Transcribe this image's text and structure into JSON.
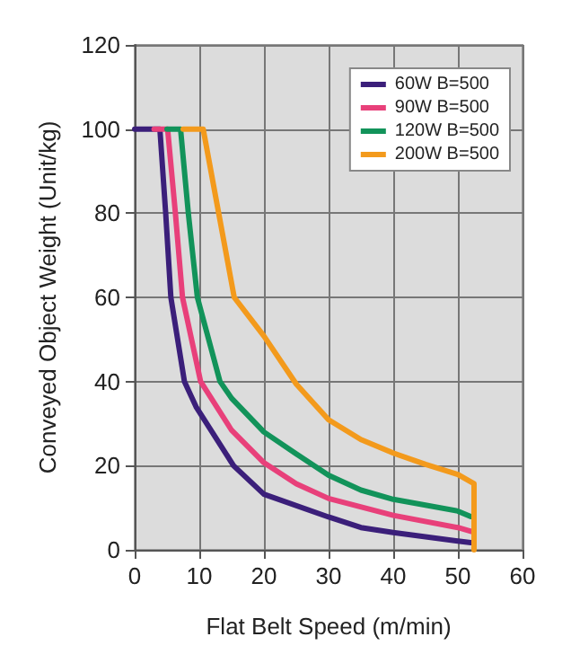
{
  "chart_data": {
    "type": "line",
    "xlabel": "Flat Belt Speed (m/min)",
    "ylabel": "Conveyed Object Weight (Unit/kg)",
    "xlim": [
      0,
      60
    ],
    "xticks": [
      0,
      10,
      20,
      30,
      40,
      50,
      60
    ],
    "ylim": [
      0,
      120
    ],
    "yticks": [
      0,
      20,
      40,
      60,
      80,
      100,
      120
    ],
    "grid": true,
    "legend": "top right",
    "marker": "none",
    "line_style": "solid",
    "series": [
      {
        "name": "60W B=500",
        "color": "#3b1f7a",
        "x": [
          0,
          3.9,
          4.8,
          5.6,
          7.7,
          9.5,
          15.3,
          20,
          30,
          35,
          40,
          50,
          52
        ],
        "values": [
          100,
          100,
          80,
          60,
          40,
          34,
          20,
          13.2,
          7.8,
          5.3,
          4.1,
          2.1,
          1.7
        ]
      },
      {
        "name": "90W B=500",
        "color": "#e8407a",
        "x": [
          3,
          5.1,
          6.3,
          7.4,
          10.2,
          15,
          20,
          25,
          30,
          40,
          50,
          52
        ],
        "values": [
          100,
          100,
          80,
          60,
          40,
          28.4,
          20.7,
          15.7,
          12.2,
          8.2,
          5.3,
          4.4
        ]
      },
      {
        "name": "120W B=500",
        "color": "#12935a",
        "x": [
          5,
          7.1,
          8.3,
          9.7,
          13.2,
          15,
          20,
          25,
          30,
          35,
          40,
          50,
          52
        ],
        "values": [
          100,
          100,
          80,
          60,
          40,
          36,
          28,
          22.8,
          17.7,
          14.2,
          12,
          9.2,
          7.9
        ]
      },
      {
        "name": "200W B=500",
        "color": "#f39a1c",
        "x": [
          7.5,
          10.6,
          13,
          15.4,
          20,
          25,
          30,
          35,
          40,
          45,
          50,
          52.5,
          52.5
        ],
        "values": [
          100,
          100,
          80,
          60,
          50.8,
          39.4,
          30.9,
          26.2,
          23,
          20.3,
          17.9,
          15.7,
          0
        ]
      }
    ]
  }
}
